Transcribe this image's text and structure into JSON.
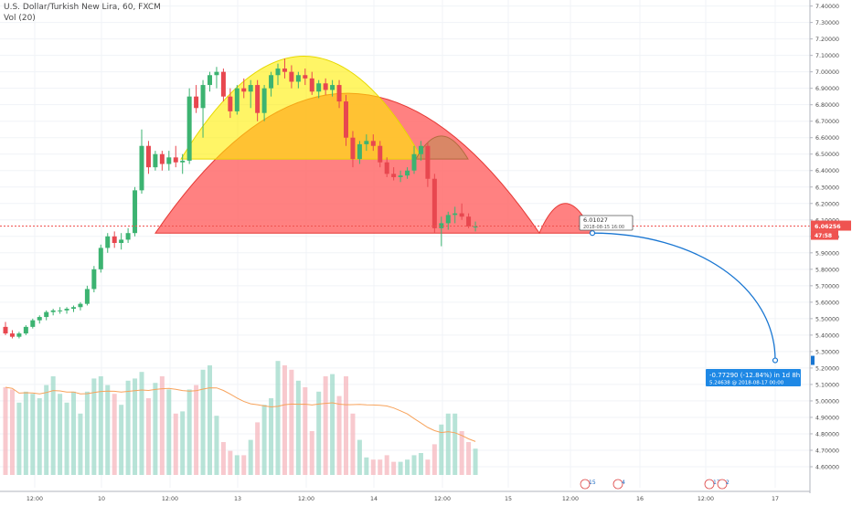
{
  "chart_data": {
    "type": "candlestick",
    "title": "U.S. Dollar/Turkish New Lira, 60, FXCM",
    "volume_label": "Vol (20)",
    "x_tick_labels": [
      "12:00",
      "10",
      "12:00",
      "13",
      "12:00",
      "14",
      "12:00",
      "15",
      "12:00",
      "16",
      "12:00",
      "17"
    ],
    "y_ticks": [
      "4.60000",
      "4.70000",
      "4.80000",
      "4.90000",
      "5.00000",
      "5.10000",
      "5.20000",
      "5.30000",
      "5.40000",
      "5.50000",
      "5.60000",
      "5.70000",
      "5.80000",
      "5.90000",
      "6.00000",
      "6.10000",
      "6.20000",
      "6.30000",
      "6.40000",
      "6.50000",
      "6.60000",
      "6.70000",
      "6.80000",
      "6.90000",
      "7.00000",
      "7.10000",
      "7.20000",
      "7.30000",
      "7.40000"
    ],
    "ylim": [
      4.55,
      7.42
    ],
    "last_price": "6.06256",
    "countdown": "47:58",
    "tooltip": {
      "value": "6.01027",
      "date": "2018-08-15 16:00"
    },
    "projection": {
      "line1": "-0.77290 (-12.84%) in 1d 8h",
      "line2": "5.24638 @ 2018-08-17 00:00"
    },
    "event_badges": [
      "15",
      "4",
      "17",
      "2"
    ],
    "colors": {
      "up": "#26a69a",
      "down": "#ef5350",
      "shape_red": "#ff6b6b",
      "shape_yellow": "#ffee00",
      "projection": "#1976d2",
      "ma": "#f7a35c"
    },
    "candles": [
      [
        5.45,
        5.48,
        5.4,
        5.41
      ],
      [
        5.41,
        5.43,
        5.38,
        5.39
      ],
      [
        5.39,
        5.42,
        5.38,
        5.41
      ],
      [
        5.41,
        5.46,
        5.4,
        5.45
      ],
      [
        5.45,
        5.5,
        5.44,
        5.49
      ],
      [
        5.49,
        5.52,
        5.47,
        5.51
      ],
      [
        5.51,
        5.55,
        5.49,
        5.54
      ],
      [
        5.54,
        5.56,
        5.52,
        5.55
      ],
      [
        5.55,
        5.57,
        5.53,
        5.55
      ],
      [
        5.55,
        5.57,
        5.53,
        5.56
      ],
      [
        5.56,
        5.58,
        5.54,
        5.57
      ],
      [
        5.57,
        5.6,
        5.55,
        5.59
      ],
      [
        5.59,
        5.7,
        5.58,
        5.68
      ],
      [
        5.68,
        5.82,
        5.66,
        5.8
      ],
      [
        5.8,
        5.95,
        5.78,
        5.93
      ],
      [
        5.93,
        6.02,
        5.9,
        6.0
      ],
      [
        6.0,
        6.03,
        5.93,
        5.96
      ],
      [
        5.96,
        6.02,
        5.92,
        5.98
      ],
      [
        5.98,
        6.05,
        5.96,
        6.02
      ],
      [
        6.02,
        6.3,
        6.0,
        6.28
      ],
      [
        6.28,
        6.65,
        6.26,
        6.55
      ],
      [
        6.55,
        6.58,
        6.38,
        6.42
      ],
      [
        6.42,
        6.52,
        6.4,
        6.5
      ],
      [
        6.5,
        6.52,
        6.4,
        6.44
      ],
      [
        6.44,
        6.52,
        6.4,
        6.48
      ],
      [
        6.48,
        6.55,
        6.42,
        6.45
      ],
      [
        6.45,
        6.5,
        6.38,
        6.46
      ],
      [
        6.46,
        6.9,
        6.44,
        6.85
      ],
      [
        6.85,
        6.92,
        6.75,
        6.78
      ],
      [
        6.78,
        6.95,
        6.6,
        6.92
      ],
      [
        6.92,
        7.0,
        6.88,
        6.98
      ],
      [
        6.98,
        7.03,
        6.9,
        7.0
      ],
      [
        7.0,
        7.02,
        6.82,
        6.85
      ],
      [
        6.85,
        6.9,
        6.72,
        6.76
      ],
      [
        6.76,
        6.92,
        6.74,
        6.9
      ],
      [
        6.9,
        6.96,
        6.84,
        6.88
      ],
      [
        6.88,
        6.95,
        6.78,
        6.92
      ],
      [
        6.92,
        6.95,
        6.7,
        6.75
      ],
      [
        6.75,
        6.92,
        6.7,
        6.9
      ],
      [
        6.9,
        7.0,
        6.85,
        6.98
      ],
      [
        6.98,
        7.05,
        6.92,
        7.02
      ],
      [
        7.02,
        7.08,
        6.96,
        7.0
      ],
      [
        7.0,
        7.04,
        6.9,
        6.94
      ],
      [
        6.94,
        7.0,
        6.9,
        6.98
      ],
      [
        6.98,
        7.02,
        6.92,
        6.96
      ],
      [
        6.96,
        7.0,
        6.86,
        6.88
      ],
      [
        6.88,
        6.95,
        6.84,
        6.93
      ],
      [
        6.93,
        6.96,
        6.86,
        6.89
      ],
      [
        6.89,
        6.95,
        6.85,
        6.92
      ],
      [
        6.92,
        6.95,
        6.78,
        6.82
      ],
      [
        6.82,
        6.86,
        6.55,
        6.6
      ],
      [
        6.6,
        6.64,
        6.42,
        6.47
      ],
      [
        6.47,
        6.58,
        6.44,
        6.56
      ],
      [
        6.56,
        6.62,
        6.52,
        6.58
      ],
      [
        6.58,
        6.62,
        6.52,
        6.55
      ],
      [
        6.55,
        6.58,
        6.42,
        6.45
      ],
      [
        6.45,
        6.48,
        6.36,
        6.38
      ],
      [
        6.38,
        6.42,
        6.34,
        6.36
      ],
      [
        6.36,
        6.4,
        6.33,
        6.37
      ],
      [
        6.37,
        6.42,
        6.35,
        6.4
      ],
      [
        6.4,
        6.55,
        6.38,
        6.5
      ],
      [
        6.5,
        6.58,
        6.46,
        6.55
      ],
      [
        6.55,
        6.57,
        6.3,
        6.35
      ],
      [
        6.35,
        6.38,
        6.02,
        6.05
      ],
      [
        6.05,
        6.12,
        5.94,
        6.08
      ],
      [
        6.08,
        6.15,
        6.04,
        6.13
      ],
      [
        6.13,
        6.18,
        6.08,
        6.14
      ],
      [
        6.14,
        6.2,
        6.1,
        6.12
      ],
      [
        6.12,
        6.14,
        6.05,
        6.06
      ],
      [
        6.06,
        6.09,
        6.03,
        6.06
      ]
    ],
    "volumes": [
      40,
      39,
      33,
      38,
      37,
      35,
      41,
      45,
      37,
      33,
      38,
      28,
      38,
      44,
      45,
      41,
      37,
      32,
      43,
      44,
      47,
      35,
      42,
      45,
      39,
      28,
      29,
      39,
      41,
      48,
      50,
      27,
      15,
      11,
      9,
      9,
      16,
      24,
      32,
      35,
      52,
      50,
      48,
      43,
      40,
      20,
      38,
      45,
      46,
      36,
      45,
      28,
      16,
      8,
      7,
      7,
      9,
      6,
      6,
      7,
      9,
      10,
      7,
      14,
      23,
      28,
      28,
      20,
      15,
      12
    ]
  }
}
